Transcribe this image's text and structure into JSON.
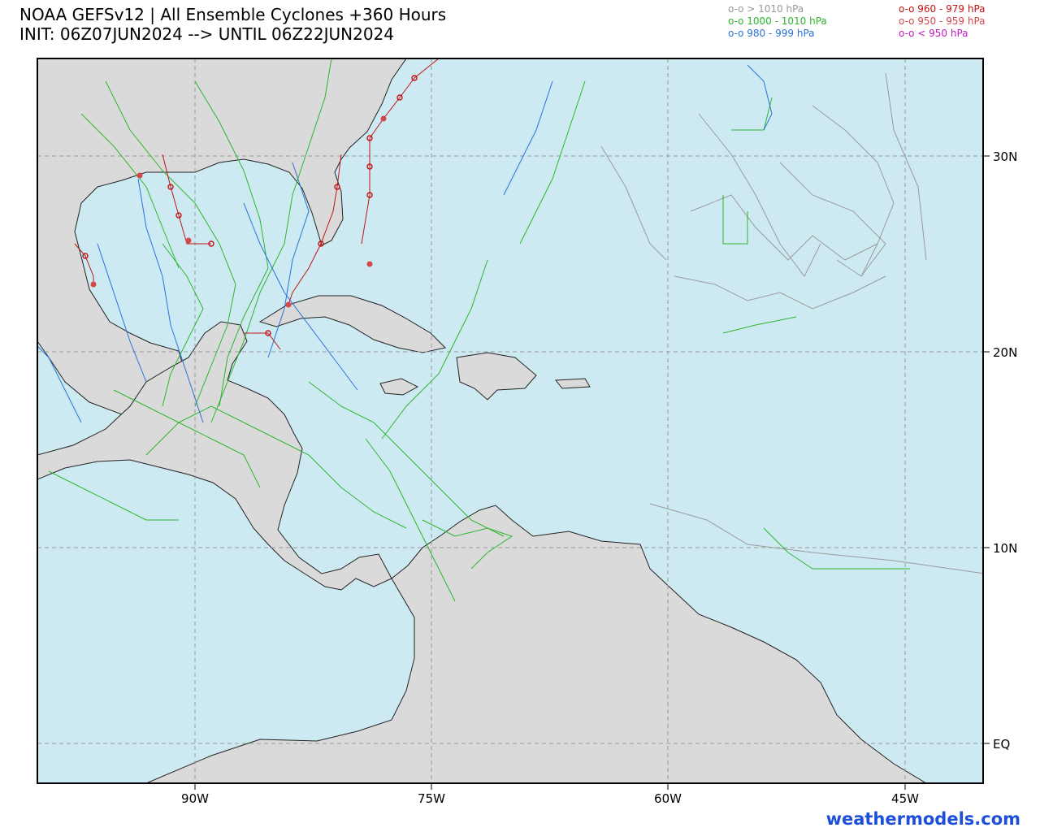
{
  "header": {
    "title_line1": "NOAA GEFSv12 | All Ensemble Cyclones +360 Hours",
    "title_line2": "INIT: 06Z07JUN2024 --> UNTIL 06Z22JUN2024"
  },
  "legend": {
    "left": [
      {
        "label": "o-o > 1010 hPa",
        "color": "#999999"
      },
      {
        "label": "o-o 1000 - 1010 hPa",
        "color": "#2db52d"
      },
      {
        "label": "o-o 980 - 999 hPa",
        "color": "#2a72d6"
      }
    ],
    "right": [
      {
        "label": "o-o 960 - 979 hPa",
        "color": "#c21414"
      },
      {
        "label": "o-o 950 - 959 hPa",
        "color": "#d2494b"
      },
      {
        "label": "o-o < 950 hPa",
        "color": "#c219c2"
      }
    ]
  },
  "map": {
    "lon_labels": [
      {
        "lon": -90,
        "label": "90W"
      },
      {
        "lon": -75,
        "label": "75W"
      },
      {
        "lon": -60,
        "label": "60W"
      },
      {
        "lon": -45,
        "label": "45W"
      }
    ],
    "lat_labels": [
      {
        "lat": 30,
        "label": "30N"
      },
      {
        "lat": 20,
        "label": "20N"
      },
      {
        "lat": 10,
        "label": "10N"
      },
      {
        "lat": 0,
        "label": "EQ"
      }
    ],
    "colors": {
      "ocean": "#cdeaf3",
      "land": "#dadada",
      "border": "#222222",
      "grid": "#999999"
    }
  },
  "footer": {
    "credit": "weathermodels.com",
    "credit_color": "#1e4fd8"
  }
}
